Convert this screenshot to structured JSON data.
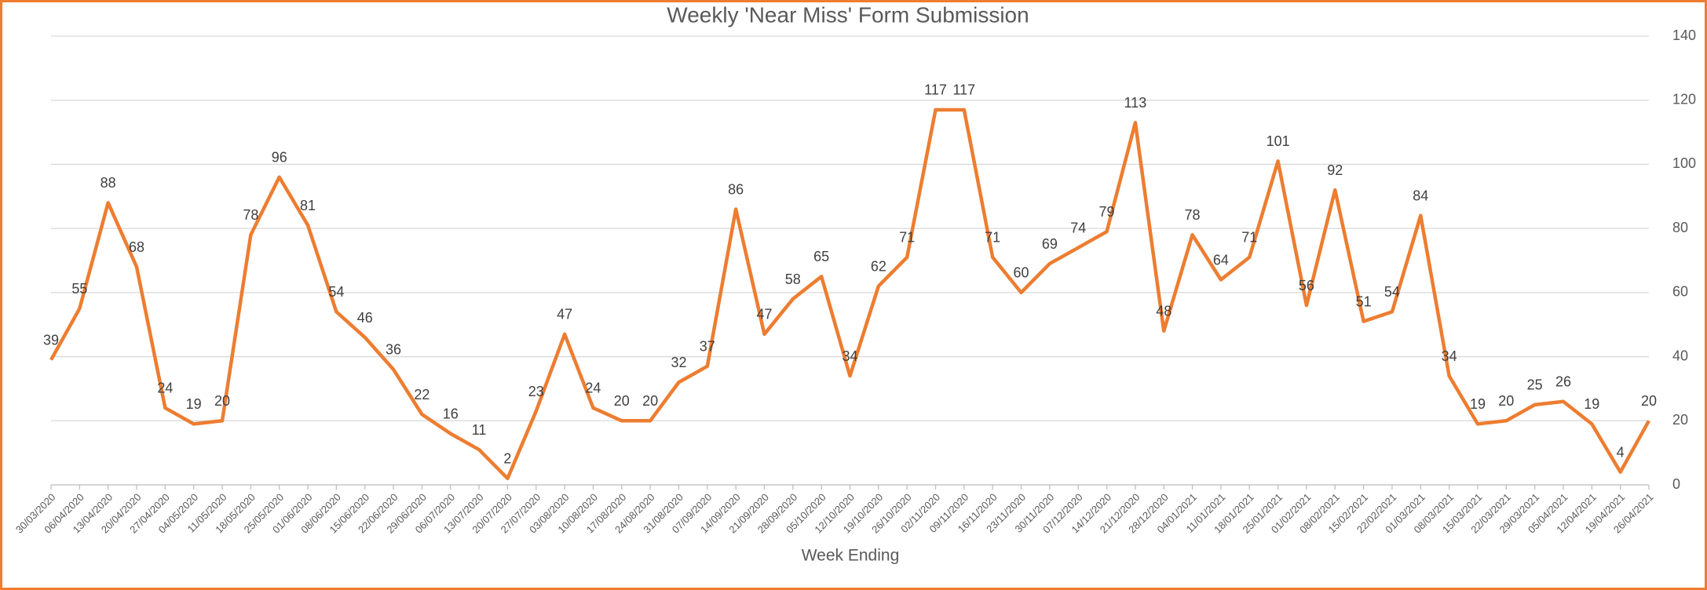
{
  "chart_data": {
    "type": "line",
    "title": "Weekly 'Near Miss' Form Submission",
    "x_label": "Week Ending",
    "categories": [
      "30/03/2020",
      "06/04/2020",
      "13/04/2020",
      "20/04/2020",
      "27/04/2020",
      "04/05/2020",
      "11/05/2020",
      "18/05/2020",
      "25/05/2020",
      "01/06/2020",
      "08/06/2020",
      "15/06/2020",
      "22/06/2020",
      "29/06/2020",
      "06/07/2020",
      "13/07/2020",
      "20/07/2020",
      "27/07/2020",
      "03/08/2020",
      "10/08/2020",
      "17/08/2020",
      "24/08/2020",
      "31/08/2020",
      "07/09/2020",
      "14/09/2020",
      "21/09/2020",
      "28/09/2020",
      "05/10/2020",
      "12/10/2020",
      "19/10/2020",
      "26/10/2020",
      "02/11/2020",
      "09/11/2020",
      "16/11/2020",
      "23/11/2020",
      "30/11/2020",
      "07/12/2020",
      "14/12/2020",
      "21/12/2020",
      "28/12/2020",
      "04/01/2021",
      "11/01/2021",
      "18/01/2021",
      "25/01/2021",
      "01/02/2021",
      "08/02/2021",
      "15/02/2021",
      "22/02/2021",
      "01/03/2021",
      "08/03/2021",
      "15/03/2021",
      "22/03/2021",
      "29/03/2021",
      "05/04/2021",
      "12/04/2021",
      "19/04/2021",
      "26/04/2021"
    ],
    "values": [
      39,
      55,
      88,
      68,
      24,
      19,
      20,
      78,
      96,
      81,
      54,
      46,
      36,
      22,
      16,
      11,
      2,
      23,
      47,
      24,
      20,
      20,
      32,
      37,
      86,
      47,
      58,
      65,
      34,
      62,
      71,
      117,
      117,
      71,
      60,
      69,
      74,
      79,
      113,
      48,
      78,
      64,
      71,
      101,
      56,
      92,
      51,
      54,
      84,
      34,
      19,
      20,
      25,
      26,
      19,
      4,
      20
    ],
    "color": "#ed7d31",
    "ylim": [
      0,
      140
    ],
    "yticks": [
      0,
      20,
      40,
      60,
      80,
      100,
      120,
      140
    ],
    "y_axis_side": "right",
    "grid": true
  }
}
